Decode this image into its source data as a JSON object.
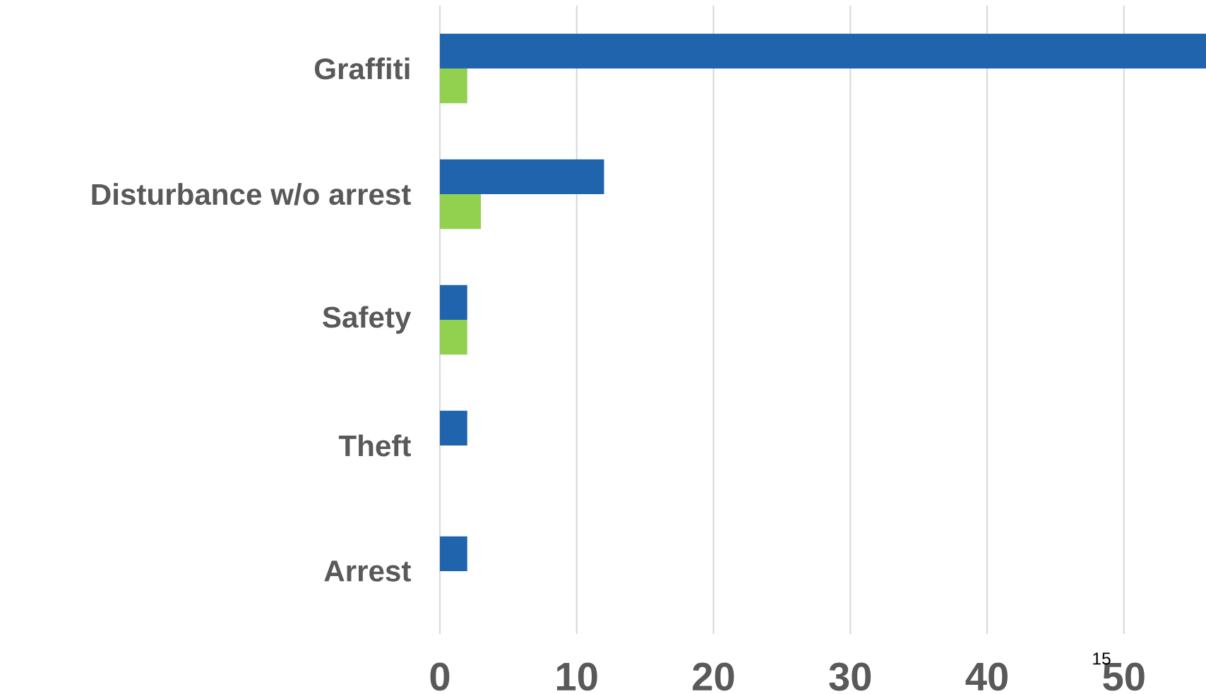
{
  "chart_data": {
    "type": "bar",
    "orientation": "horizontal",
    "categories": [
      "Graffiti",
      "Disturbance w/o arrest",
      "Safety",
      "Theft",
      "Arrest"
    ],
    "series": [
      {
        "color": "#2064ae",
        "values": [
          56,
          12,
          2,
          2,
          2
        ]
      },
      {
        "color": "#92d050",
        "values": [
          2,
          3,
          2,
          null,
          null
        ]
      }
    ],
    "xlim": [
      0,
      56
    ],
    "xticks": [
      0,
      10,
      20,
      30,
      40,
      50
    ],
    "grid": "x",
    "annotations": [
      "15"
    ]
  }
}
